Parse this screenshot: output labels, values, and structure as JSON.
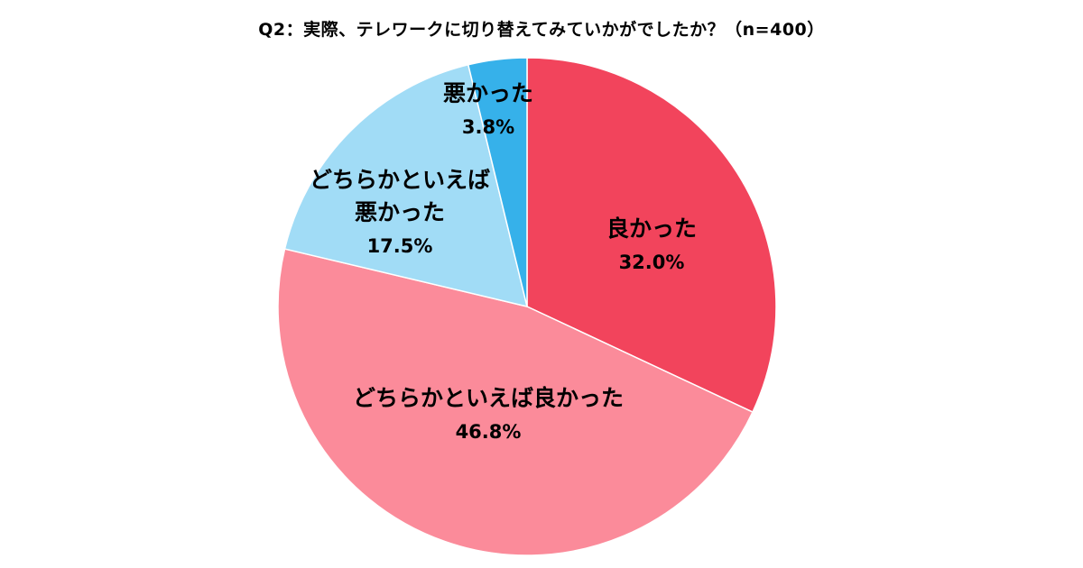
{
  "chart_data": {
    "type": "pie",
    "title": "Q2：実際、テレワークに切り替えてみていかがでしたか？（n=400）",
    "start_angle_deg": 0,
    "direction": "clockwise",
    "slices": [
      {
        "label": [
          "良かった"
        ],
        "value": 32.0,
        "value_label": "32.0%",
        "color": "#f2445c"
      },
      {
        "label": [
          "どちらかといえば良かった"
        ],
        "value": 46.8,
        "value_label": "46.8%",
        "color": "#fb8b9a"
      },
      {
        "label": [
          "どちらかといえば",
          "悪かった"
        ],
        "value": 17.5,
        "value_label": "17.5%",
        "color": "#a1dcf6"
      },
      {
        "label": [
          "悪かった"
        ],
        "value": 3.8,
        "value_label": "3.8%",
        "color": "#36b1ea"
      }
    ]
  }
}
